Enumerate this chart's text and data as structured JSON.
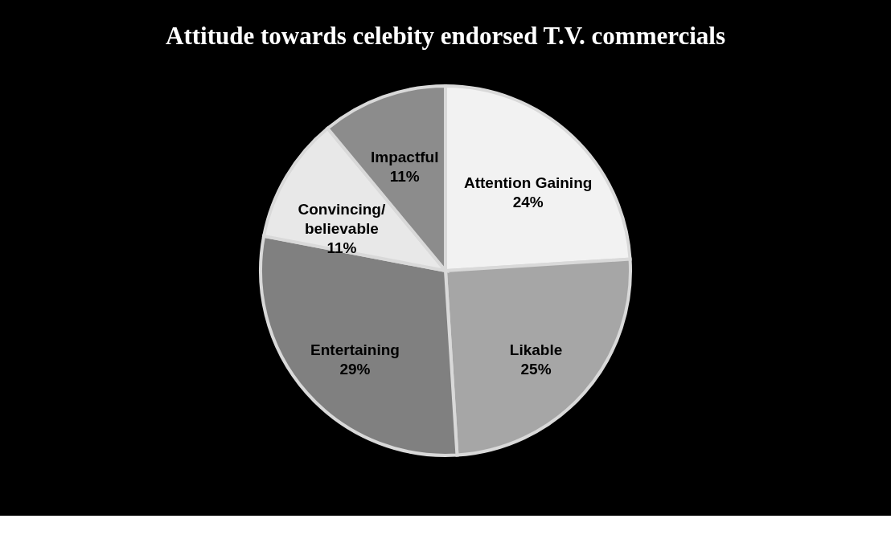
{
  "chart_data": {
    "type": "pie",
    "title": "Attitude towards celebity endorsed T.V. commercials",
    "categories": [
      "Attention Gaining",
      "Likable",
      "Entertaining",
      "Convincing/believable",
      "Impactful"
    ],
    "values": [
      24,
      25,
      29,
      11,
      11
    ],
    "value_labels": [
      "24%",
      "25%",
      "29%",
      "11%",
      "11%"
    ],
    "colors": [
      "#f2f2f2",
      "#a6a6a6",
      "#808080",
      "#e8e8e8",
      "#8c8c8c"
    ],
    "legend": false
  }
}
